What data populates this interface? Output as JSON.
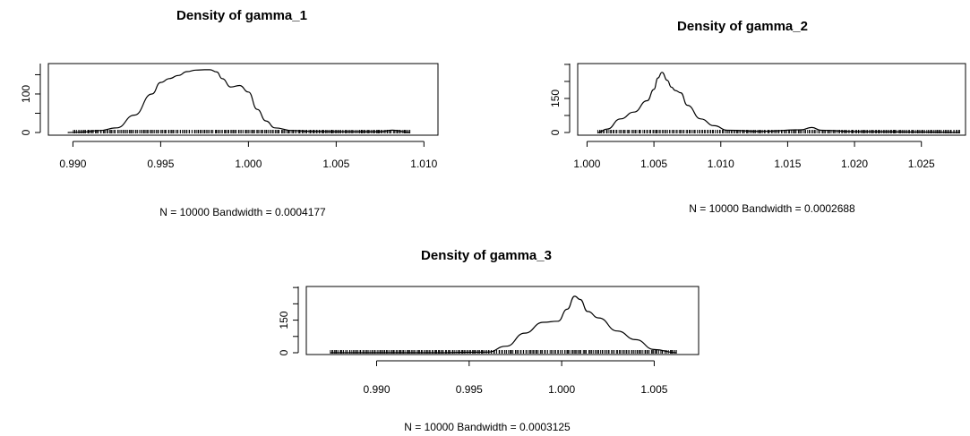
{
  "chart_data": [
    {
      "type": "line",
      "title": "Density of gamma_1",
      "subtitle": "N = 10000   Bandwidth = 0.0004177",
      "xlim": [
        0.9886,
        1.0108
      ],
      "ylim": [
        0,
        165
      ],
      "x_ticks": [
        0.99,
        0.995,
        1.0,
        1.005,
        1.01
      ],
      "x_tick_labels": [
        "0.990",
        "0.995",
        "1.000",
        "1.005",
        "1.010"
      ],
      "y_ticks": [
        0,
        100
      ],
      "y_tick_labels": [
        "0",
        "100"
      ],
      "grid": false,
      "series": [
        {
          "x": [
            0.9897,
            0.9905,
            0.9915,
            0.9925,
            0.9935,
            0.9945,
            0.995,
            0.9955,
            0.996,
            0.9965,
            0.997,
            0.9975,
            0.9978,
            0.9982,
            0.9985,
            0.999,
            0.9995,
            1.0,
            1.0005,
            1.001,
            1.0015,
            1.0025,
            1.0035,
            1.005,
            1.0075,
            1.0082,
            1.0092
          ],
          "y": [
            0,
            1,
            5,
            12,
            45,
            100,
            130,
            140,
            148,
            158,
            162,
            163,
            163,
            157,
            140,
            118,
            122,
            105,
            60,
            30,
            12,
            5,
            3,
            2,
            2,
            6,
            0
          ]
        }
      ],
      "rug_range": [
        0.99,
        1.0092
      ]
    },
    {
      "type": "line",
      "title": "Density of gamma_2",
      "subtitle": "N = 10000   Bandwidth = 0.0002688",
      "xlim": [
        0.9993,
        1.0283
      ],
      "ylim": [
        0,
        280
      ],
      "x_ticks": [
        1.0,
        1.005,
        1.01,
        1.015,
        1.02,
        1.025
      ],
      "x_tick_labels": [
        "1.000",
        "1.005",
        "1.010",
        "1.015",
        "1.020",
        "1.025"
      ],
      "y_ticks": [
        0,
        150
      ],
      "y_tick_labels": [
        "0",
        "150"
      ],
      "grid": false,
      "series": [
        {
          "x": [
            1.0008,
            1.0015,
            1.0025,
            1.0035,
            1.0045,
            1.005,
            1.0053,
            1.0056,
            1.006,
            1.0063,
            1.0066,
            1.007,
            1.0075,
            1.0085,
            1.0095,
            1.0105,
            1.013,
            1.016,
            1.0168,
            1.0175,
            1.02,
            1.025,
            1.0279
          ],
          "y": [
            0,
            15,
            60,
            90,
            140,
            190,
            240,
            265,
            230,
            200,
            185,
            175,
            120,
            60,
            30,
            10,
            5,
            12,
            22,
            10,
            4,
            2,
            0
          ]
        }
      ],
      "rug_range": [
        1.0008,
        1.0279
      ]
    },
    {
      "type": "line",
      "title": "Density of gamma_3",
      "subtitle": "N = 10000   Bandwidth = 0.0003125",
      "xlim": [
        0.9862,
        1.0074
      ],
      "ylim": [
        0,
        280
      ],
      "x_ticks": [
        0.99,
        0.995,
        1.0,
        1.005
      ],
      "x_tick_labels": [
        "0.990",
        "0.995",
        "1.000",
        "1.005"
      ],
      "y_ticks": [
        0,
        150
      ],
      "y_tick_labels": [
        "0",
        "150"
      ],
      "grid": false,
      "series": [
        {
          "x": [
            0.9875,
            0.993,
            0.996,
            0.997,
            0.998,
            0.999,
            0.9998,
            1.0003,
            1.0007,
            1.001,
            1.0014,
            1.002,
            1.003,
            1.004,
            1.005,
            1.0062
          ],
          "y": [
            0,
            0,
            3,
            30,
            90,
            140,
            145,
            200,
            260,
            245,
            190,
            160,
            100,
            60,
            15,
            0
          ]
        }
      ],
      "rug_range": [
        0.9875,
        1.0062
      ]
    }
  ]
}
